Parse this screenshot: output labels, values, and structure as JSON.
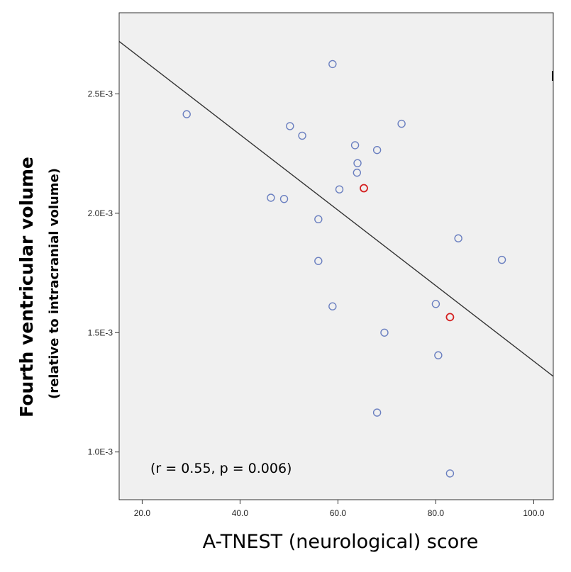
{
  "chart_data": {
    "type": "scatter",
    "title": "",
    "xlabel": "A-TNEST (neurological) score",
    "ylabel": "Fourth ventricular volume",
    "ylabel_sub": "(relative to intracranial volume)",
    "annotation": "(r = 0.55, p = 0.006)",
    "xlim": [
      15.3,
      104.0
    ],
    "ylim": [
      0.0008,
      0.00284
    ],
    "x_ticks": [
      20,
      40,
      60,
      80,
      100
    ],
    "x_tick_labels": [
      "20.0",
      "40.0",
      "60.0",
      "80.0",
      "100.0"
    ],
    "y_ticks": [
      0.001,
      0.0015,
      0.002,
      0.0025
    ],
    "y_tick_labels": [
      "1.0E-3",
      "1.5E-3",
      "2.0E-3",
      "2.5E-3"
    ],
    "grid": false,
    "colors": {
      "plot_bg": "#f0f0f0",
      "point": "#6a7fc0",
      "highlight": "#d42020",
      "line": "#333333"
    },
    "series": [
      {
        "name": "subjects",
        "x": [
          58.9,
          29.1,
          50.2,
          52.7,
          63.5,
          73.0,
          68.0,
          64.0,
          63.9,
          60.3,
          46.3,
          49.0,
          56.0,
          84.6,
          56.0,
          93.5,
          80.0,
          58.9,
          69.5,
          80.5,
          68.0,
          82.9
        ],
        "y": [
          0.002625,
          0.002415,
          0.002365,
          0.002325,
          0.002285,
          0.002375,
          0.002265,
          0.00221,
          0.00217,
          0.0021,
          0.002065,
          0.00206,
          0.001975,
          0.001895,
          0.0018,
          0.001805,
          0.00162,
          0.00161,
          0.0015,
          0.001405,
          0.001165,
          0.00091
        ]
      },
      {
        "name": "highlighted",
        "x": [
          65.3,
          82.9
        ],
        "y": [
          0.002105,
          0.001565
        ]
      }
    ],
    "fit_line": {
      "x": [
        15.3,
        104.0
      ],
      "y": [
        0.00272,
        0.001317
      ]
    }
  }
}
